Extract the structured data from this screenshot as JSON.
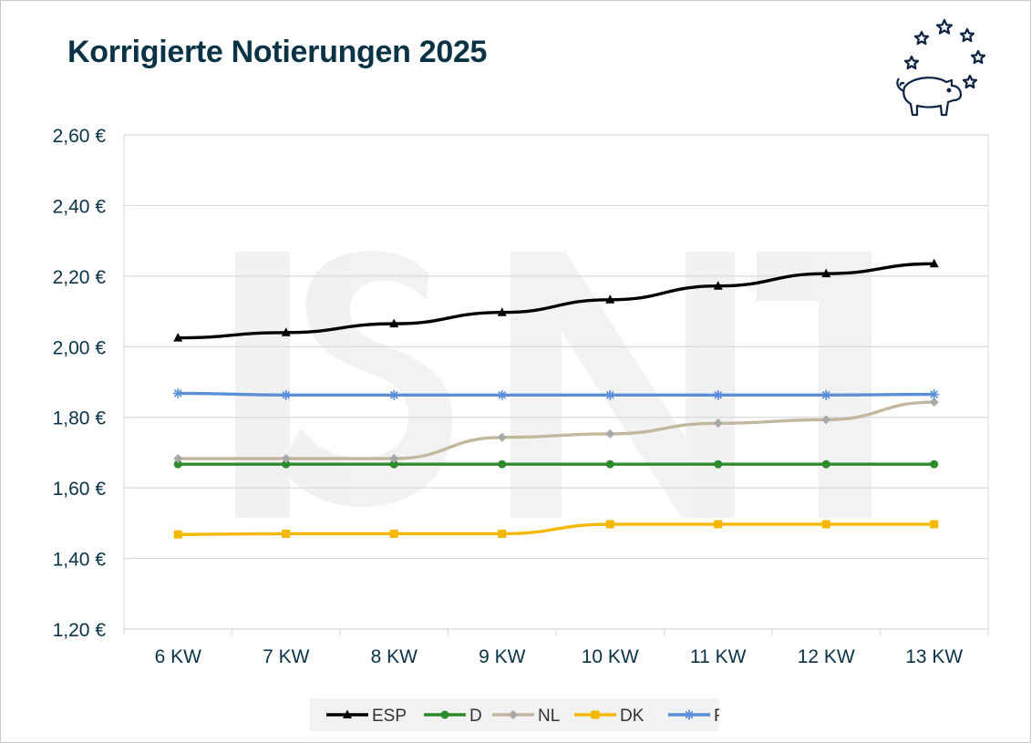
{
  "chart_data": {
    "type": "line",
    "title": "Korrigierte Notierungen 2025",
    "xlabel": "",
    "ylabel": "",
    "categories": [
      "6 KW",
      "7 KW",
      "8 KW",
      "9 KW",
      "10 KW",
      "11 KW",
      "12 KW",
      "13 KW"
    ],
    "ylim": [
      1.2,
      2.6
    ],
    "yticks": [
      1.2,
      1.4,
      1.6,
      1.8,
      2.0,
      2.2,
      2.4,
      2.6
    ],
    "ytick_labels": [
      "1,20 €",
      "1,40 €",
      "1,60 €",
      "1,80 €",
      "2,00 €",
      "2,20 €",
      "2,40 €",
      "2,60 €"
    ],
    "grid": "horizontal",
    "legend_position": "bottom",
    "watermark": "ISN",
    "series": [
      {
        "name": "ESP",
        "color": "#000000",
        "marker": "triangle",
        "values": [
          2.025,
          2.04,
          2.065,
          2.097,
          2.133,
          2.172,
          2.207,
          2.235
        ]
      },
      {
        "name": "D",
        "color": "#2e8b2e",
        "marker": "circle",
        "values": [
          1.667,
          1.667,
          1.667,
          1.667,
          1.667,
          1.667,
          1.667,
          1.667
        ]
      },
      {
        "name": "NL",
        "color": "#c2b89e",
        "marker": "diamond",
        "values": [
          1.683,
          1.683,
          1.683,
          1.743,
          1.753,
          1.783,
          1.793,
          1.843
        ]
      },
      {
        "name": "DK",
        "color": "#f5b800",
        "marker": "square",
        "values": [
          1.468,
          1.47,
          1.47,
          1.47,
          1.497,
          1.497,
          1.497,
          1.497
        ]
      },
      {
        "name": "F",
        "color": "#5b8ed6",
        "marker": "star",
        "values": [
          1.868,
          1.863,
          1.863,
          1.863,
          1.863,
          1.863,
          1.863,
          1.865
        ]
      }
    ]
  }
}
